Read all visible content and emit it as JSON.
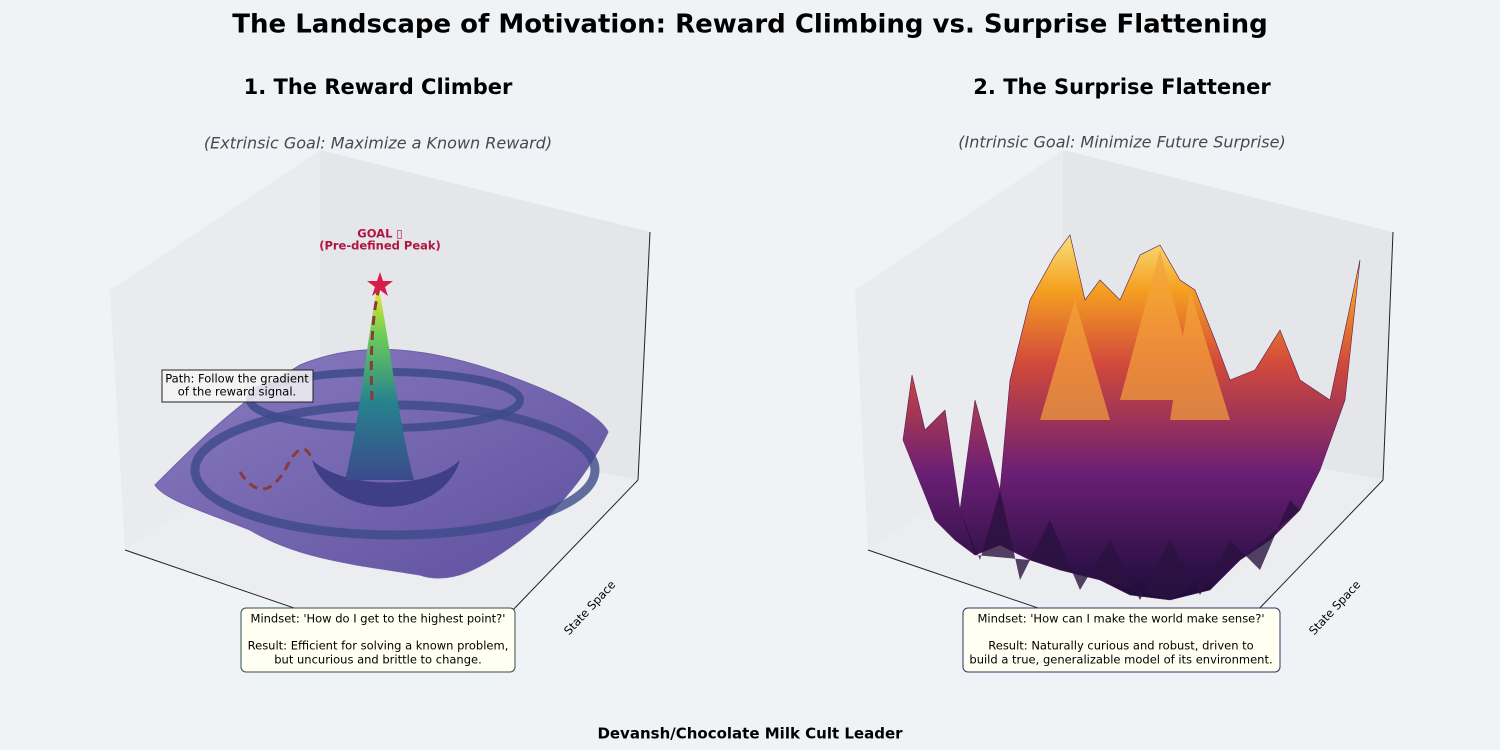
{
  "title": "The Landscape of Motivation: Reward Climbing vs. Surprise Flattening",
  "footer": "Devansh/Chocolate Milk Cult Leader",
  "chart_data": [
    {
      "type": "surface3d",
      "title": "1. The Reward Climber",
      "subtitle": "(Extrinsic Goal: Maximize a Known Reward)",
      "goal_label": [
        "GOAL ▯",
        "(Pre-defined Peak)"
      ],
      "path_note": [
        "Path: Follow the gradient",
        "of the reward signal."
      ],
      "ylabel": "State Space",
      "mindset": [
        "Mindset: 'How do I get to the highest point?'",
        "Result: Efficient for solving a known problem,",
        "but uncurious and brittle to change."
      ]
    },
    {
      "type": "surface3d",
      "title": "2. The Surprise Flattener",
      "subtitle": "(Intrinsic Goal: Minimize Future Surprise)",
      "ylabel": "State Space",
      "mindset": [
        "Mindset: 'How can I make the world make sense?'",
        "Result: Naturally curious and robust, driven to",
        "build a true, generalizable model of its environment."
      ]
    }
  ]
}
